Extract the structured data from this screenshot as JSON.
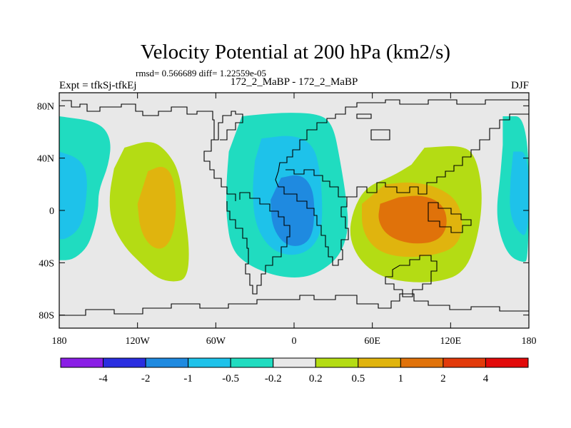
{
  "chart_data": {
    "type": "heatmap",
    "title": "Velocity Potential at 200 hPa (km2/s)",
    "subtitle_stats": "rmsd= 0.566689 diff= 1.22559e-05",
    "left_label": "Expt = tfkSj-tfkEj",
    "center_label": "172_2_MaBP - 172_2_MaBP",
    "right_label": "DJF",
    "xlabel": "",
    "ylabel": "",
    "xlim": [
      -180,
      180
    ],
    "ylim": [
      -90,
      90
    ],
    "x_ticks": [
      {
        "value": -180,
        "label": "180"
      },
      {
        "value": -120,
        "label": "120W"
      },
      {
        "value": -60,
        "label": "60W"
      },
      {
        "value": 0,
        "label": "0"
      },
      {
        "value": 60,
        "label": "60E"
      },
      {
        "value": 120,
        "label": "120E"
      },
      {
        "value": 180,
        "label": "180"
      }
    ],
    "y_ticks": [
      {
        "value": 80,
        "label": "80N"
      },
      {
        "value": 40,
        "label": "40N"
      },
      {
        "value": 0,
        "label": "0"
      },
      {
        "value": -40,
        "label": "40S"
      },
      {
        "value": -80,
        "label": "80S"
      }
    ],
    "colorbar": {
      "boundaries": [
        -4,
        -2,
        -1,
        -0.5,
        -0.2,
        0.2,
        0.5,
        1,
        2,
        4
      ],
      "labels": [
        "-4",
        "-2",
        "-1",
        "-0.5",
        "-0.2",
        "0.2",
        "0.5",
        "1",
        "2",
        "4"
      ],
      "colors": [
        "#8a1ee6",
        "#2a2ee0",
        "#1f8ae0",
        "#1ec2ea",
        "#20dcc0",
        "#e8e8e8",
        "#b4dc14",
        "#e0b40e",
        "#e0720a",
        "#e23a0a",
        "#e20a0a"
      ]
    },
    "missing_color": "#e8e8e8",
    "regions": [
      {
        "name": "Pacific negative anomaly (wraps dateline)",
        "level": "-0.5 to -0.2",
        "poly": [
          [
            160,
            72
          ],
          [
            180,
            72
          ],
          [
            180,
            -38
          ],
          [
            175,
            -40
          ],
          [
            165,
            -35
          ],
          [
            158,
            -20
          ],
          [
            155,
            0
          ],
          [
            158,
            25
          ],
          [
            160,
            50
          ]
        ]
      },
      {
        "name": "Pacific negative anomaly west part",
        "level": "-0.5 to -0.2",
        "poly": [
          [
            -180,
            72
          ],
          [
            -150,
            68
          ],
          [
            -140,
            55
          ],
          [
            -142,
            35
          ],
          [
            -150,
            15
          ],
          [
            -150,
            0
          ],
          [
            -155,
            -20
          ],
          [
            -160,
            -30
          ],
          [
            -170,
            -38
          ],
          [
            -180,
            -38
          ]
        ]
      },
      {
        "name": "Pacific inner core",
        "level": "-1 to -0.5",
        "poly": [
          [
            -180,
            45
          ],
          [
            -165,
            40
          ],
          [
            -158,
            28
          ],
          [
            -160,
            0
          ],
          [
            -165,
            -15
          ],
          [
            -175,
            -22
          ],
          [
            -180,
            -22
          ]
        ]
      },
      {
        "name": "Pacific inner core east part",
        "level": "-1 to -0.5",
        "poly": [
          [
            168,
            45
          ],
          [
            180,
            45
          ],
          [
            180,
            -22
          ],
          [
            170,
            -15
          ],
          [
            165,
            0
          ],
          [
            166,
            25
          ]
        ]
      },
      {
        "name": "Eastern Pacific positive anomaly",
        "level": "0.2 to 0.5",
        "poly": [
          [
            -130,
            48
          ],
          [
            -110,
            54
          ],
          [
            -98,
            46
          ],
          [
            -88,
            30
          ],
          [
            -84,
            0
          ],
          [
            -80,
            -30
          ],
          [
            -82,
            -52
          ],
          [
            -92,
            -55
          ],
          [
            -105,
            -52
          ],
          [
            -118,
            -40
          ],
          [
            -130,
            -28
          ],
          [
            -140,
            -10
          ],
          [
            -142,
            10
          ],
          [
            -138,
            32
          ]
        ]
      },
      {
        "name": "Eastern Pacific core",
        "level": "0.5 to 1",
        "poly": [
          [
            -112,
            30
          ],
          [
            -100,
            35
          ],
          [
            -92,
            25
          ],
          [
            -90,
            0
          ],
          [
            -93,
            -20
          ],
          [
            -100,
            -30
          ],
          [
            -110,
            -28
          ],
          [
            -118,
            -15
          ],
          [
            -120,
            5
          ]
        ]
      },
      {
        "name": "Atlantic/Africa negative anomaly",
        "level": "-0.5 to -0.2",
        "poly": [
          [
            -40,
            72
          ],
          [
            -10,
            75
          ],
          [
            20,
            74
          ],
          [
            30,
            65
          ],
          [
            35,
            40
          ],
          [
            40,
            10
          ],
          [
            42,
            -15
          ],
          [
            35,
            -35
          ],
          [
            20,
            -47
          ],
          [
            5,
            -52
          ],
          [
            -15,
            -50
          ],
          [
            -35,
            -42
          ],
          [
            -48,
            -30
          ],
          [
            -52,
            -5
          ],
          [
            -52,
            20
          ],
          [
            -50,
            45
          ]
        ]
      },
      {
        "name": "Atlantic/Africa moderate",
        "level": "-1 to -0.5",
        "poly": [
          [
            -25,
            55
          ],
          [
            0,
            58
          ],
          [
            15,
            50
          ],
          [
            20,
            30
          ],
          [
            22,
            0
          ],
          [
            20,
            -20
          ],
          [
            10,
            -32
          ],
          [
            -5,
            -35
          ],
          [
            -20,
            -28
          ],
          [
            -30,
            -10
          ],
          [
            -32,
            15
          ],
          [
            -30,
            38
          ]
        ]
      },
      {
        "name": "Atlantic/Africa core",
        "level": "-2 to -1",
        "poly": [
          [
            -10,
            25
          ],
          [
            5,
            28
          ],
          [
            14,
            18
          ],
          [
            16,
            0
          ],
          [
            14,
            -20
          ],
          [
            5,
            -28
          ],
          [
            -8,
            -26
          ],
          [
            -17,
            -12
          ],
          [
            -18,
            8
          ]
        ]
      },
      {
        "name": "Indian Ocean/Maritime positive anomaly",
        "level": "0.2 to 0.5",
        "poly": [
          [
            100,
            48
          ],
          [
            130,
            50
          ],
          [
            140,
            40
          ],
          [
            145,
            10
          ],
          [
            140,
            -25
          ],
          [
            130,
            -48
          ],
          [
            110,
            -55
          ],
          [
            85,
            -55
          ],
          [
            65,
            -50
          ],
          [
            50,
            -38
          ],
          [
            42,
            -20
          ],
          [
            45,
            0
          ],
          [
            55,
            18
          ],
          [
            75,
            26
          ],
          [
            90,
            35
          ]
        ]
      },
      {
        "name": "Indian Ocean/Maritime moderate",
        "level": "0.5 to 1",
        "poly": [
          [
            70,
            20
          ],
          [
            90,
            22
          ],
          [
            110,
            18
          ],
          [
            125,
            8
          ],
          [
            130,
            -10
          ],
          [
            125,
            -28
          ],
          [
            105,
            -35
          ],
          [
            80,
            -36
          ],
          [
            62,
            -30
          ],
          [
            52,
            -15
          ],
          [
            52,
            5
          ]
        ]
      },
      {
        "name": "Indian Ocean/Maritime core",
        "level": "1 to 2",
        "poly": [
          [
            80,
            10
          ],
          [
            100,
            12
          ],
          [
            115,
            4
          ],
          [
            118,
            -12
          ],
          [
            110,
            -24
          ],
          [
            90,
            -26
          ],
          [
            72,
            -20
          ],
          [
            64,
            -8
          ],
          [
            66,
            5
          ]
        ]
      }
    ]
  }
}
